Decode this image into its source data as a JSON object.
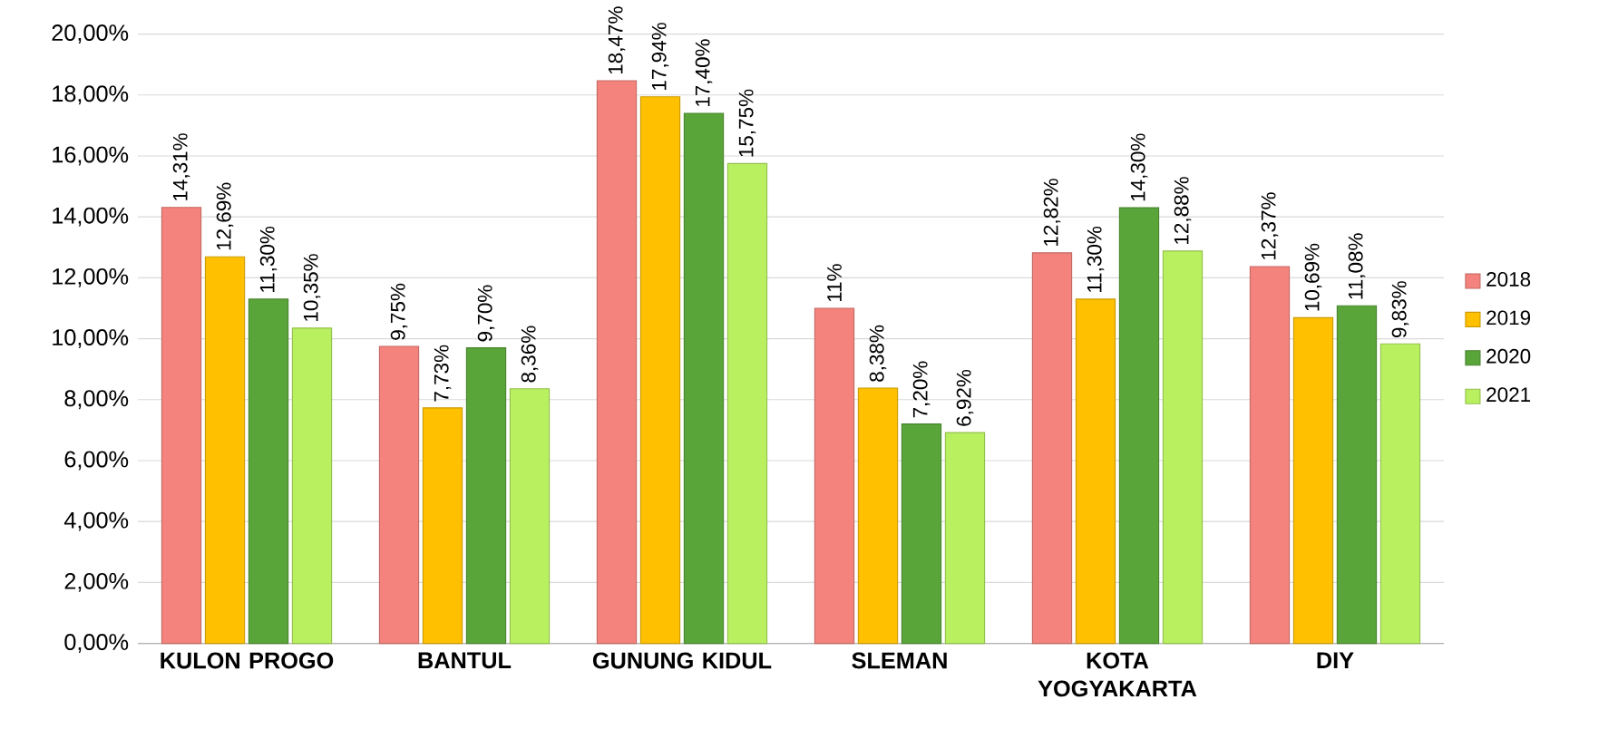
{
  "chart_data": {
    "type": "bar",
    "categories": [
      "KULON PROGO",
      "BANTUL",
      "GUNUNG KIDUL",
      "SLEMAN",
      "KOTA YOGYAKARTA",
      "DIY"
    ],
    "series": [
      {
        "name": "2018",
        "color": "#f4837d",
        "values": [
          14.31,
          9.75,
          18.47,
          11,
          12.82,
          12.37
        ],
        "value_labels": [
          "14,31%",
          "9,75%",
          "18,47%",
          "11%",
          "12,82%",
          "12,37%"
        ]
      },
      {
        "name": "2019",
        "color": "#ffc000",
        "values": [
          12.69,
          7.73,
          17.94,
          8.38,
          11.3,
          10.69
        ],
        "value_labels": [
          "12,69%",
          "7,73%",
          "17,94%",
          "8,38%",
          "11,30%",
          "10,69%"
        ]
      },
      {
        "name": "2020",
        "color": "#5aa53a",
        "values": [
          11.3,
          9.7,
          17.4,
          7.2,
          14.3,
          11.08
        ],
        "value_labels": [
          "11,30%",
          "9,70%",
          "17,40%",
          "7,20%",
          "14,30%",
          "11,08%"
        ]
      },
      {
        "name": "2021",
        "color": "#b9f060",
        "values": [
          10.35,
          8.36,
          15.75,
          6.92,
          12.88,
          9.83
        ],
        "value_labels": [
          "10,35%",
          "8,36%",
          "15,75%",
          "6,92%",
          "12,88%",
          "9,83%"
        ]
      }
    ],
    "ylim": [
      0,
      20
    ],
    "yticks": [
      {
        "value": 0,
        "label": "0,00%"
      },
      {
        "value": 2,
        "label": "2,00%"
      },
      {
        "value": 4,
        "label": "4,00%"
      },
      {
        "value": 6,
        "label": "6,00%"
      },
      {
        "value": 8,
        "label": "8,00%"
      },
      {
        "value": 10,
        "label": "10,00%"
      },
      {
        "value": 12,
        "label": "12,00%"
      },
      {
        "value": 14,
        "label": "14,00%"
      },
      {
        "value": 16,
        "label": "16,00%"
      },
      {
        "value": 18,
        "label": "18,00%"
      },
      {
        "value": 20,
        "label": "20,00%"
      }
    ],
    "grid": "y",
    "legend": "right"
  }
}
